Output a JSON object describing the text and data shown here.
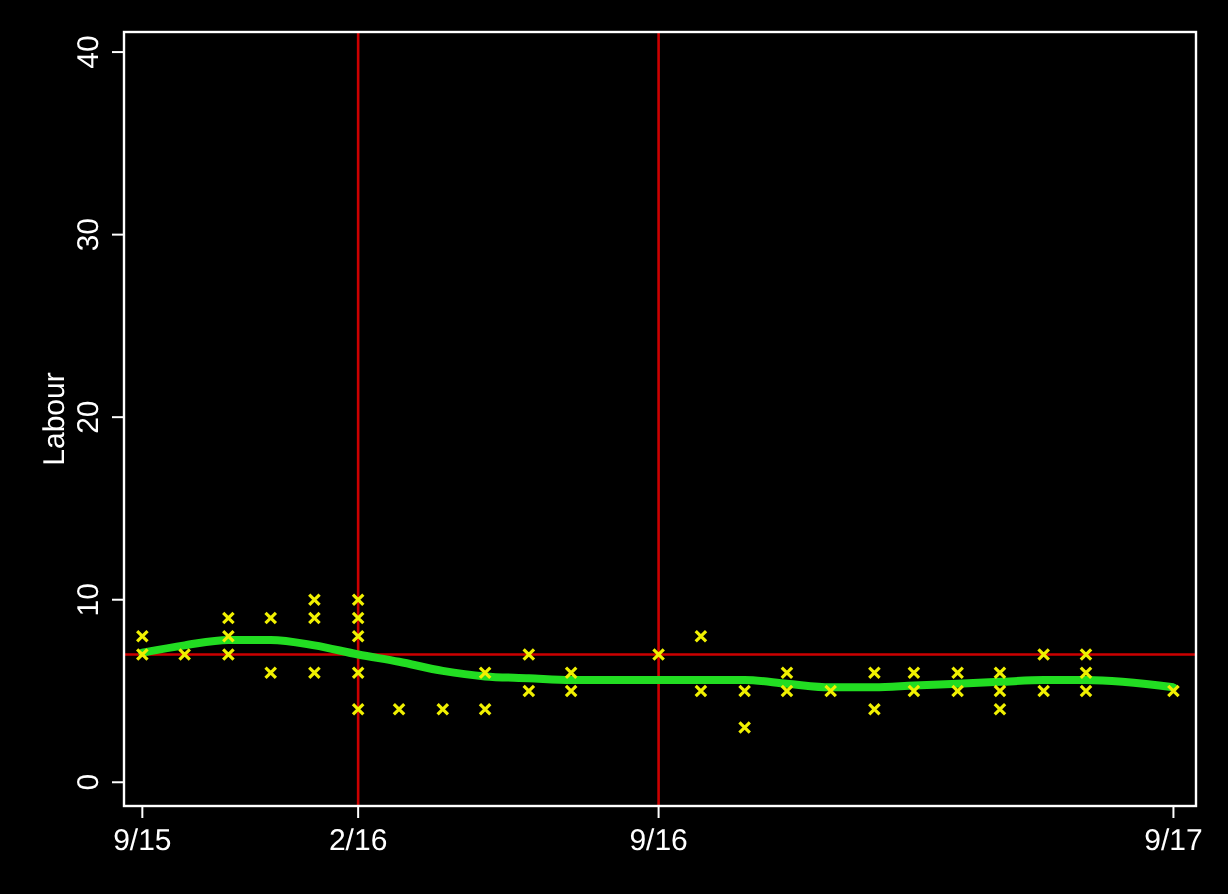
{
  "chart_data": {
    "type": "scatter",
    "ylabel": "Labour",
    "xlim": [
      "2015-08-19",
      "2017-09-17"
    ],
    "ylim": [
      -1.3,
      41.1
    ],
    "yticks": [
      0,
      10,
      20,
      30,
      40
    ],
    "xticks": [
      {
        "value": "2015-09-01",
        "label": "9/15"
      },
      {
        "value": "2016-02-01",
        "label": "2/16"
      },
      {
        "value": "2016-09-01",
        "label": "9/16"
      },
      {
        "value": "2017-09-01",
        "label": "9/17"
      }
    ],
    "grid": false,
    "ref_lines": [
      {
        "axis": "x",
        "value": "2016-02-01",
        "color": "#cc0000"
      },
      {
        "axis": "x",
        "value": "2016-09-01",
        "color": "#cc0000"
      },
      {
        "axis": "y",
        "value": 7,
        "color": "#cc0000"
      }
    ],
    "series": [
      {
        "color": "#f0f000",
        "marker": "cross",
        "x": [
          "2015-09-01",
          "2015-09-01",
          "2015-10-01",
          "2015-11-01",
          "2015-11-01",
          "2015-11-01",
          "2015-12-01",
          "2015-12-01",
          "2016-01-01",
          "2016-01-01",
          "2016-01-01",
          "2016-02-01",
          "2016-02-01",
          "2016-02-01",
          "2016-02-01",
          "2016-02-01",
          "2016-03-01",
          "2016-04-01",
          "2016-05-01",
          "2016-05-01",
          "2016-06-01",
          "2016-06-01",
          "2016-07-01",
          "2016-07-01",
          "2016-09-01",
          "2016-10-01",
          "2016-10-01",
          "2016-11-01",
          "2016-11-01",
          "2016-12-01",
          "2016-12-01",
          "2017-01-01",
          "2017-02-01",
          "2017-02-01",
          "2017-03-01",
          "2017-03-01",
          "2017-04-01",
          "2017-04-01",
          "2017-05-01",
          "2017-05-01",
          "2017-05-01",
          "2017-06-01",
          "2017-06-01",
          "2017-07-01",
          "2017-07-01",
          "2017-07-01",
          "2017-09-01"
        ],
        "values": [
          8,
          7,
          7,
          9,
          8,
          7,
          9,
          6,
          10,
          9,
          6,
          10,
          9,
          8,
          6,
          4,
          4,
          4,
          6,
          4,
          7,
          5,
          6,
          5,
          7,
          8,
          5,
          5,
          3,
          6,
          5,
          5,
          6,
          4,
          6,
          5,
          6,
          5,
          6,
          5,
          4,
          7,
          5,
          7,
          6,
          5,
          5
        ]
      },
      {
        "type": "line",
        "color": "#22dd22",
        "marker": "none",
        "line_style": "solid",
        "x": [
          "2015-09-01",
          "2015-10-01",
          "2015-11-01",
          "2015-12-01",
          "2016-01-01",
          "2016-02-01",
          "2016-03-01",
          "2016-04-01",
          "2016-05-01",
          "2016-06-01",
          "2016-07-01",
          "2016-09-01",
          "2016-10-01",
          "2016-11-01",
          "2016-12-01",
          "2017-01-01",
          "2017-02-01",
          "2017-03-01",
          "2017-04-01",
          "2017-05-01",
          "2017-06-01",
          "2017-07-01",
          "2017-09-01"
        ],
        "values": [
          7.1,
          7.5,
          7.8,
          7.8,
          7.5,
          7.0,
          6.6,
          6.1,
          5.8,
          5.7,
          5.6,
          5.6,
          5.6,
          5.6,
          5.4,
          5.2,
          5.2,
          5.3,
          5.4,
          5.5,
          5.6,
          5.6,
          5.2
        ]
      }
    ]
  }
}
